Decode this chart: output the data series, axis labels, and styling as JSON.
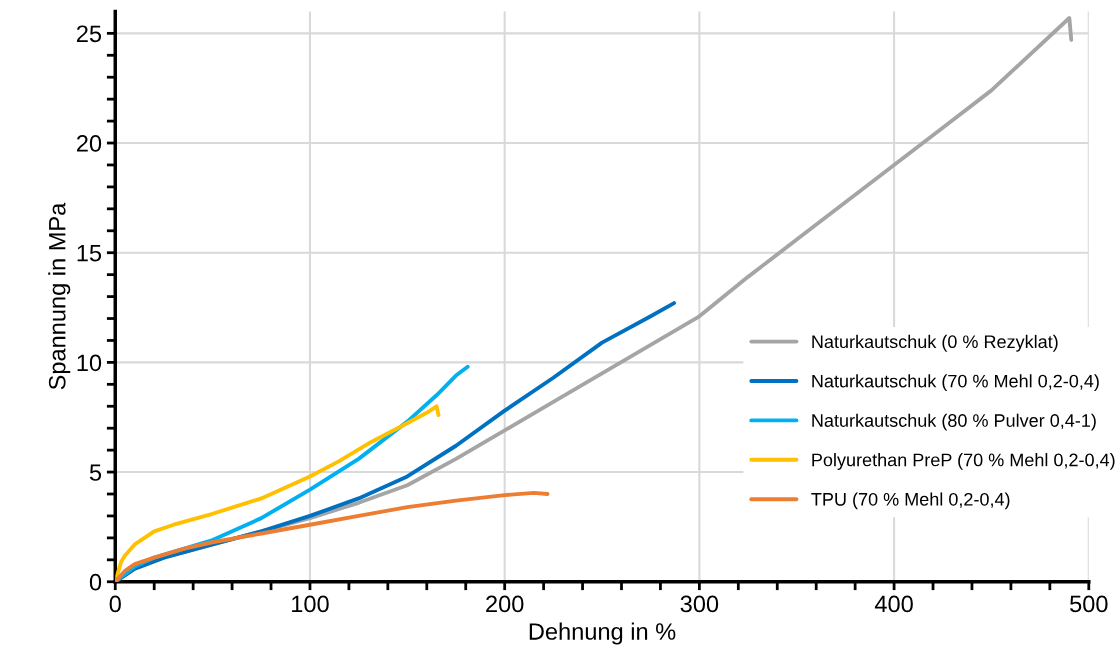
{
  "chart_data": {
    "type": "line",
    "xlabel": "Dehnung in %",
    "ylabel": "Spannung in MPa",
    "xlim": [
      0,
      500
    ],
    "ylim": [
      0,
      26
    ],
    "xticks": [
      0,
      {
        "value": 20,
        "label": null
      },
      {
        "value": 40,
        "label": null
      },
      {
        "value": 60,
        "label": null
      },
      {
        "value": 80,
        "label": null
      },
      100,
      {
        "value": 120,
        "label": null
      },
      {
        "value": 140,
        "label": null
      },
      {
        "value": 160,
        "label": null
      },
      {
        "value": 180,
        "label": null
      },
      200,
      {
        "value": 220,
        "label": null
      },
      {
        "value": 240,
        "label": null
      },
      {
        "value": 260,
        "label": null
      },
      {
        "value": 280,
        "label": null
      },
      300,
      {
        "value": 320,
        "label": null
      },
      {
        "value": 340,
        "label": null
      },
      {
        "value": 360,
        "label": null
      },
      {
        "value": 380,
        "label": null
      },
      400,
      {
        "value": 420,
        "label": null
      },
      {
        "value": 440,
        "label": null
      },
      {
        "value": 460,
        "label": null
      },
      {
        "value": 480,
        "label": null
      },
      500
    ],
    "yticks": [
      0,
      {
        "value": 1,
        "label": null
      },
      {
        "value": 2,
        "label": null
      },
      {
        "value": 3,
        "label": null
      },
      {
        "value": 4,
        "label": null
      },
      5,
      {
        "value": 6,
        "label": null
      },
      {
        "value": 7,
        "label": null
      },
      {
        "value": 8,
        "label": null
      },
      {
        "value": 9,
        "label": null
      },
      10,
      {
        "value": 11,
        "label": null
      },
      {
        "value": 12,
        "label": null
      },
      {
        "value": 13,
        "label": null
      },
      {
        "value": 14,
        "label": null
      },
      15,
      {
        "value": 16,
        "label": null
      },
      {
        "value": 17,
        "label": null
      },
      {
        "value": 18,
        "label": null
      },
      {
        "value": 19,
        "label": null
      },
      20,
      {
        "value": 21,
        "label": null
      },
      {
        "value": 22,
        "label": null
      },
      {
        "value": 23,
        "label": null
      },
      {
        "value": 24,
        "label": null
      },
      25
    ],
    "grid": true,
    "legend": "right",
    "marker": "none",
    "line_style": "solid",
    "series": [
      {
        "name": "Naturkautschuk (0 % Rezyklat)",
        "color": "#a5a5a5",
        "x": [
          0,
          10,
          25,
          50,
          75,
          100,
          125,
          150,
          175,
          200,
          225,
          250,
          275,
          300,
          325,
          350,
          375,
          400,
          425,
          450,
          490,
          491
        ],
        "values": [
          0,
          0.6,
          1.1,
          1.7,
          2.3,
          2.9,
          3.6,
          4.4,
          5.6,
          6.9,
          8.2,
          9.5,
          10.8,
          12.1,
          13.9,
          15.6,
          17.3,
          19,
          20.7,
          22.4,
          25.7,
          24.7
        ]
      },
      {
        "name": "Naturkautschuk (70 % Mehl 0,2-0,4)",
        "color": "#0070c0",
        "x": [
          0,
          10,
          25,
          50,
          75,
          100,
          125,
          150,
          175,
          200,
          225,
          250,
          275,
          287
        ],
        "values": [
          0,
          0.6,
          1.1,
          1.7,
          2.3,
          3.0,
          3.8,
          4.8,
          6.2,
          7.8,
          9.3,
          10.9,
          12.1,
          12.7
        ]
      },
      {
        "name": "Naturkautschuk (80 % Pulver 0,4-1)",
        "color": "#00b0f0",
        "x": [
          0,
          10,
          20,
          35,
          50,
          75,
          100,
          125,
          150,
          165,
          175,
          181
        ],
        "values": [
          0,
          0.7,
          1.1,
          1.5,
          1.9,
          2.9,
          4.2,
          5.6,
          7.3,
          8.5,
          9.4,
          9.8
        ]
      },
      {
        "name": "Polyurethan PreP (70 % Mehl 0,2-0,4)",
        "color": "#ffc000",
        "x": [
          0,
          3,
          5,
          10,
          15,
          20,
          30,
          50,
          75,
          100,
          115,
          130,
          145,
          160,
          165,
          166
        ],
        "values": [
          0,
          0.9,
          1.2,
          1.7,
          2.0,
          2.3,
          2.6,
          3.1,
          3.8,
          4.8,
          5.5,
          6.3,
          7.0,
          7.7,
          8.0,
          7.6
        ]
      },
      {
        "name": "TPU (70 % Mehl 0,2-0,4)",
        "color": "#ed7d31",
        "x": [
          0,
          5,
          10,
          20,
          35,
          50,
          75,
          100,
          125,
          150,
          175,
          200,
          215,
          222
        ],
        "values": [
          0,
          0.5,
          0.8,
          1.1,
          1.5,
          1.8,
          2.2,
          2.6,
          3.0,
          3.4,
          3.7,
          3.95,
          4.05,
          4.0
        ]
      }
    ]
  }
}
